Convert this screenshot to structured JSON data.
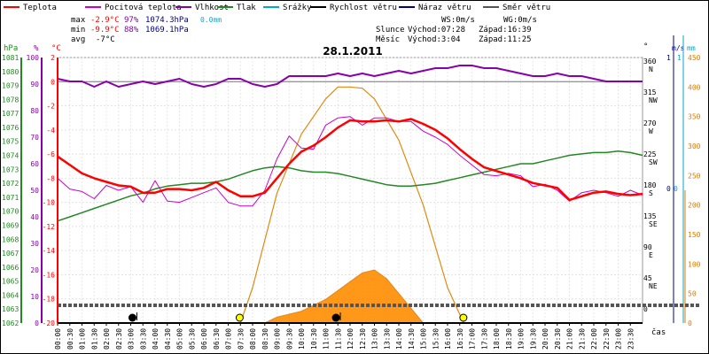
{
  "chart_data": {
    "type": "line",
    "title": "28.1.2011",
    "legend": [
      {
        "name": "Teplota",
        "color": "#ff0000"
      },
      {
        "name": "Pocitová teplota",
        "color": "#cc00cc"
      },
      {
        "name": "Vlhkost",
        "color": "#8800aa"
      },
      {
        "name": "Tlak",
        "color": "#228822"
      },
      {
        "name": "Srážky",
        "color": "#00aacc"
      },
      {
        "name": "Rychlost větru",
        "color": "#000000"
      },
      {
        "name": "Náraz větru",
        "color": "#000088"
      },
      {
        "name": "Směr větru",
        "color": "#555555"
      }
    ],
    "stats": {
      "max_label": "max",
      "max_temp": "-2.9°C",
      "max_hum": "97%",
      "max_press": "1074.3hPa",
      "precip": "0.0mm",
      "min_label": "min",
      "min_temp": "-9.9°C",
      "min_hum": "88%",
      "min_press": "1069.1hPa",
      "avg_label": "avg",
      "avg_temp": "-7°C"
    },
    "wind": {
      "ws": "WS:0m/s",
      "wg": "WG:0m/s"
    },
    "sun": {
      "label": "Slunce",
      "rise": "Východ:07:28",
      "set": "Západ:16:39"
    },
    "moon": {
      "label": "Měsíc",
      "rise": "Východ:3:04",
      "set": "Západ:11:25"
    },
    "x_label": "čas",
    "x_ticks": [
      "00:00",
      "00:30",
      "01:00",
      "01:30",
      "02:00",
      "02:30",
      "03:00",
      "03:30",
      "04:00",
      "04:30",
      "05:00",
      "05:30",
      "06:00",
      "06:30",
      "07:00",
      "07:30",
      "08:00",
      "08:30",
      "09:00",
      "09:30",
      "10:00",
      "10:30",
      "11:00",
      "11:30",
      "12:00",
      "12:30",
      "13:00",
      "13:30",
      "14:00",
      "14:30",
      "15:00",
      "15:30",
      "16:00",
      "16:30",
      "17:00",
      "17:30",
      "18:00",
      "18:30",
      "19:00",
      "19:30",
      "20:00",
      "20:30",
      "21:00",
      "21:30",
      "22:00",
      "22:30",
      "23:00",
      "23:30"
    ],
    "axes": {
      "hpa": {
        "label": "hPa",
        "ticks": [
          "1081",
          "1080",
          "1079",
          "1078",
          "1077",
          "1076",
          "1075",
          "1074",
          "1073",
          "1072",
          "1071",
          "1070",
          "1069",
          "1068",
          "1067",
          "1066",
          "1065",
          "1064",
          "1063",
          "1062"
        ]
      },
      "humidity": {
        "label": "%",
        "ticks": [
          "100",
          "90",
          "80",
          "70",
          "60",
          "50",
          "40",
          "30",
          "20",
          "10",
          "0"
        ]
      },
      "temp": {
        "label": "°C",
        "ticks": [
          "2",
          "0",
          "-2",
          "-4",
          "-6",
          "-8",
          "-10",
          "-12",
          "-14",
          "-16",
          "-18",
          "-20"
        ],
        "ylim": [
          -20,
          2
        ]
      },
      "direction": {
        "label": "°",
        "ticks": [
          "360",
          "315",
          "270",
          "225",
          "180",
          "135",
          "90",
          "45",
          "0"
        ],
        "dirs": [
          "N",
          "NW",
          "W",
          "SW",
          "S",
          "SE",
          "E",
          "NE",
          ""
        ]
      },
      "wind_speed": {
        "label": "m/s",
        "ticks": [
          "1",
          "0"
        ]
      },
      "precip_axis": {
        "label": "mm",
        "ticks": [
          "1",
          "0"
        ]
      },
      "solar": {
        "ticks": [
          "450",
          "400",
          "350",
          "300",
          "250",
          "200",
          "150",
          "100",
          "50",
          "0"
        ],
        "ylim": [
          0,
          450
        ]
      }
    },
    "series": [
      {
        "name": "Teplota",
        "unit": "°C",
        "x": [
          0,
          0.5,
          1,
          1.5,
          2,
          2.5,
          3,
          3.5,
          4,
          4.5,
          5,
          5.5,
          6,
          6.5,
          7,
          7.5,
          8,
          8.5,
          9,
          9.5,
          10,
          10.5,
          11,
          11.5,
          12,
          12.5,
          13,
          13.5,
          14,
          14.5,
          15,
          15.5,
          16,
          16.5,
          17,
          17.5,
          18,
          18.5,
          19,
          19.5,
          20,
          20.5,
          21,
          21.5,
          22,
          22.5,
          23,
          23.5,
          24
        ],
        "y": [
          -6.2,
          -6.9,
          -7.6,
          -8.0,
          -8.3,
          -8.6,
          -8.7,
          -9.2,
          -9.2,
          -8.9,
          -8.9,
          -9.0,
          -8.8,
          -8.3,
          -9.0,
          -9.5,
          -9.5,
          -9.2,
          -8.0,
          -6.8,
          -5.8,
          -5.3,
          -4.6,
          -3.8,
          -3.2,
          -3.3,
          -3.3,
          -3.2,
          -3.3,
          -3.1,
          -3.5,
          -4.0,
          -4.7,
          -5.6,
          -6.4,
          -7.1,
          -7.4,
          -7.7,
          -8.0,
          -8.4,
          -8.6,
          -8.8,
          -9.8,
          -9.5,
          -9.2,
          -9.1,
          -9.3,
          -9.4,
          -9.3
        ]
      },
      {
        "name": "Pocitová teplota",
        "unit": "°C",
        "x": [
          0,
          0.5,
          1,
          1.5,
          2,
          2.5,
          3,
          3.5,
          4,
          4.5,
          5,
          5.5,
          6,
          6.5,
          7,
          7.5,
          8,
          8.5,
          9,
          9.5,
          10,
          10.5,
          11,
          11.5,
          12,
          12.5,
          13,
          13.5,
          14,
          14.5,
          15,
          15.5,
          16,
          16.5,
          17,
          17.5,
          18,
          18.5,
          19,
          19.5,
          20,
          20.5,
          21,
          21.5,
          22,
          22.5,
          23,
          23.5,
          24
        ],
        "y": [
          -8.0,
          -8.9,
          -9.1,
          -9.7,
          -8.6,
          -9.0,
          -8.7,
          -10.0,
          -8.2,
          -9.9,
          -10.0,
          -9.6,
          -9.2,
          -8.8,
          -10.0,
          -10.3,
          -10.3,
          -9.0,
          -6.4,
          -4.5,
          -5.5,
          -5.6,
          -3.6,
          -3.0,
          -2.9,
          -3.6,
          -3.0,
          -3.0,
          -3.3,
          -3.3,
          -4.1,
          -4.6,
          -5.2,
          -6.1,
          -6.9,
          -7.7,
          -7.8,
          -7.6,
          -7.8,
          -8.7,
          -8.5,
          -9.0,
          -9.9,
          -9.2,
          -9.0,
          -9.2,
          -9.5,
          -9.0,
          -9.4
        ]
      },
      {
        "name": "Vlhkost",
        "unit": "%",
        "x": [
          0,
          0.5,
          1,
          1.5,
          2,
          2.5,
          3,
          3.5,
          4,
          4.5,
          5,
          5.5,
          6,
          6.5,
          7,
          7.5,
          8,
          8.5,
          9,
          9.5,
          10,
          10.5,
          11,
          11.5,
          12,
          12.5,
          13,
          13.5,
          14,
          14.5,
          15,
          15.5,
          16,
          16.5,
          17,
          17.5,
          18,
          18.5,
          19,
          19.5,
          20,
          20.5,
          21,
          21.5,
          22,
          22.5,
          23,
          23.5,
          24
        ],
        "y": [
          92,
          91,
          91,
          89,
          91,
          89,
          90,
          91,
          90,
          91,
          92,
          90,
          89,
          90,
          92,
          92,
          90,
          89,
          90,
          93,
          93,
          93,
          93,
          94,
          93,
          94,
          93,
          94,
          95,
          94,
          95,
          96,
          96,
          97,
          97,
          96,
          96,
          95,
          94,
          93,
          93,
          94,
          93,
          93,
          92,
          91,
          91,
          91,
          91
        ]
      },
      {
        "name": "Tlak",
        "unit": "hPa",
        "x": [
          0,
          0.5,
          1,
          1.5,
          2,
          2.5,
          3,
          3.5,
          4,
          4.5,
          5,
          5.5,
          6,
          6.5,
          7,
          7.5,
          8,
          8.5,
          9,
          9.5,
          10,
          10.5,
          11,
          11.5,
          12,
          12.5,
          13,
          13.5,
          14,
          14.5,
          15,
          15.5,
          16,
          16.5,
          17,
          17.5,
          18,
          18.5,
          19,
          19.5,
          20,
          20.5,
          21,
          21.5,
          22,
          22.5,
          23,
          23.5,
          24
        ],
        "y": [
          1069.3,
          1069.6,
          1069.9,
          1070.2,
          1070.5,
          1070.8,
          1071.1,
          1071.3,
          1071.6,
          1071.8,
          1071.9,
          1072.0,
          1072.0,
          1072.1,
          1072.3,
          1072.6,
          1072.9,
          1073.1,
          1073.2,
          1073.1,
          1072.9,
          1072.8,
          1072.8,
          1072.7,
          1072.5,
          1072.3,
          1072.1,
          1071.9,
          1071.8,
          1071.8,
          1071.9,
          1072.0,
          1072.2,
          1072.4,
          1072.6,
          1072.8,
          1073.0,
          1073.2,
          1073.4,
          1073.4,
          1073.6,
          1073.8,
          1074.0,
          1074.1,
          1074.2,
          1074.2,
          1074.3,
          1074.2,
          1074.0
        ]
      },
      {
        "name": "Solar",
        "unit": "W/m2",
        "x": [
          7.5,
          8,
          9,
          10,
          11,
          11.5,
          12,
          12.5,
          13,
          14,
          15,
          16,
          16.66
        ],
        "y": [
          0,
          60,
          220,
          320,
          380,
          400,
          400,
          398,
          380,
          310,
          200,
          60,
          0
        ]
      },
      {
        "name": "Solar measured",
        "unit": "W/m2",
        "x": [
          8.5,
          9,
          10,
          10.5,
          11,
          11.5,
          12,
          12.5,
          13,
          13.5,
          14,
          14.5,
          15
        ],
        "y": [
          0,
          10,
          20,
          30,
          40,
          55,
          70,
          85,
          90,
          75,
          50,
          25,
          0
        ]
      }
    ],
    "markers": {
      "sun": [
        7.47,
        16.65
      ],
      "moon": [
        3.07,
        11.42
      ],
      "direction_line_deg": 20
    }
  }
}
